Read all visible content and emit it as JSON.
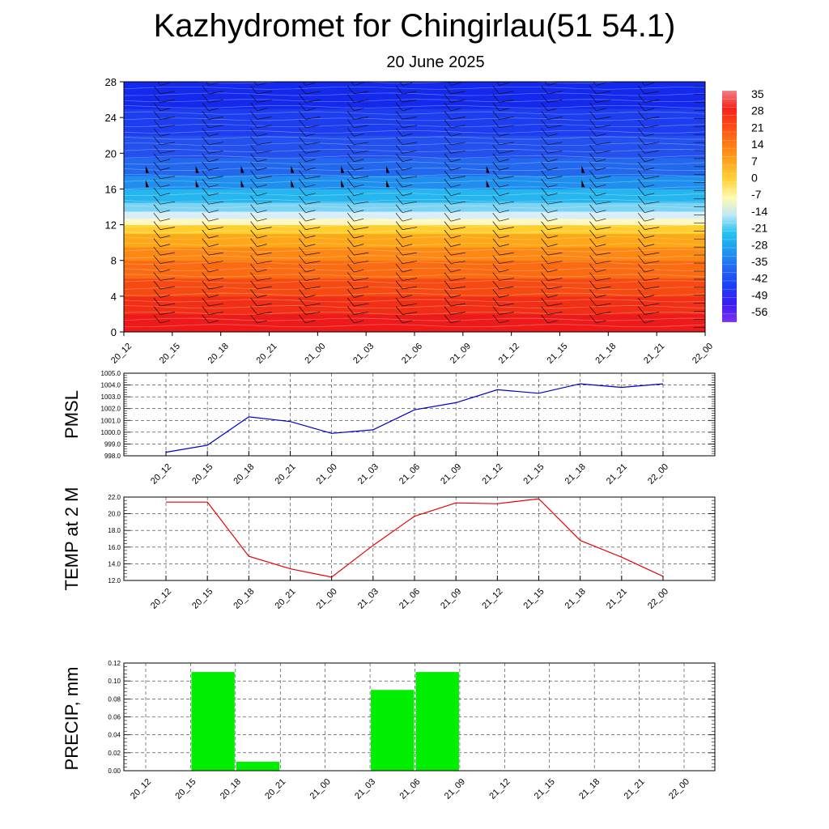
{
  "header": {
    "title": "Kazhydromet for Chingirlau(51 54.1)",
    "subtitle": "20 June 2025"
  },
  "chart_data": [
    {
      "type": "heatmap",
      "name": "temperature-cross-section",
      "title": "",
      "xlabel": "",
      "ylabel": "",
      "x": [
        "20_12",
        "20_15",
        "20_18",
        "20_21",
        "21_00",
        "21_03",
        "21_06",
        "21_09",
        "21_12",
        "21_15",
        "21_18",
        "21_21",
        "22_00"
      ],
      "y_ticks": [
        0,
        4,
        8,
        12,
        16,
        20,
        24,
        28
      ],
      "ylim": [
        0,
        28
      ],
      "colorbar": {
        "labels": [
          "35",
          "28",
          "21",
          "14",
          "7",
          "0",
          "-7",
          "-14",
          "-21",
          "-28",
          "-35",
          "-42",
          "-49",
          "-56"
        ],
        "colors": [
          "#7d33f0",
          "#3b1cf4",
          "#1d3ef5",
          "#2566f3",
          "#1e97f0",
          "#22c4ef",
          "#bfe6f6",
          "#fffbb0",
          "#ffd33b",
          "#ffa71c",
          "#ff7a16",
          "#ff4b14",
          "#f5231b",
          "#f07f89"
        ]
      },
      "bands": [
        {
          "from": 0,
          "to": 2,
          "color": "#ee1a1a"
        },
        {
          "from": 2,
          "to": 4,
          "color": "#f22e14"
        },
        {
          "from": 4,
          "to": 6,
          "color": "#f74a12"
        },
        {
          "from": 6,
          "to": 8,
          "color": "#fb6b12"
        },
        {
          "from": 8,
          "to": 9.5,
          "color": "#fd8914"
        },
        {
          "from": 9.5,
          "to": 11,
          "color": "#fea818"
        },
        {
          "from": 11,
          "to": 12,
          "color": "#ffcf30"
        },
        {
          "from": 12,
          "to": 12.7,
          "color": "#fff8bf"
        },
        {
          "from": 12.7,
          "to": 13.5,
          "color": "#d8eef8"
        },
        {
          "from": 13.5,
          "to": 14.5,
          "color": "#7cd3f3"
        },
        {
          "from": 14.5,
          "to": 16,
          "color": "#25b6ef"
        },
        {
          "from": 16,
          "to": 17.5,
          "color": "#1e8fef"
        },
        {
          "from": 17.5,
          "to": 19.5,
          "color": "#2168ef"
        },
        {
          "from": 19.5,
          "to": 22,
          "color": "#2350ef"
        },
        {
          "from": 22,
          "to": 25,
          "color": "#1d3df0"
        },
        {
          "from": 25,
          "to": 28,
          "color": "#1429ee"
        }
      ]
    },
    {
      "type": "line",
      "name": "pmsl",
      "ylabel": "PMSL",
      "x": [
        "20_12",
        "20_15",
        "20_18",
        "20_21",
        "21_00",
        "21_03",
        "21_06",
        "21_09",
        "21_12",
        "21_15",
        "21_18",
        "21_21",
        "22_00"
      ],
      "y_ticks": [
        "998.0",
        "999.0",
        "1000.0",
        "1001.0",
        "1002.0",
        "1003.0",
        "1004.0",
        "1005.0"
      ],
      "ylim": [
        998,
        1005
      ],
      "color": "#0000cc",
      "values": [
        998.3,
        998.9,
        1001.3,
        1000.9,
        999.9,
        1000.2,
        1001.9,
        1002.5,
        1003.6,
        1003.3,
        1004.1,
        1003.8,
        1004.1
      ]
    },
    {
      "type": "line",
      "name": "temp-2m",
      "ylabel": "TEMP at 2 M",
      "x": [
        "20_12",
        "20_15",
        "20_18",
        "20_21",
        "21_00",
        "21_03",
        "21_06",
        "21_09",
        "21_12",
        "21_15",
        "21_18",
        "21_21",
        "22_00"
      ],
      "y_ticks": [
        "12.0",
        "14.0",
        "16.0",
        "18.0",
        "20.0",
        "22.0"
      ],
      "ylim": [
        12,
        22
      ],
      "color": "#ee0000",
      "values": [
        21.4,
        21.4,
        14.9,
        13.4,
        12.4,
        16.2,
        19.7,
        21.3,
        21.2,
        21.8,
        16.8,
        14.8,
        12.5
      ]
    },
    {
      "type": "bar",
      "name": "precip",
      "ylabel": "PRECIP, mm",
      "categories": [
        "20_12",
        "20_15",
        "20_18",
        "20_21",
        "21_00",
        "21_03",
        "21_06",
        "21_09",
        "21_12",
        "21_15",
        "21_18",
        "21_21",
        "22_00"
      ],
      "y_ticks": [
        "0.00",
        "0.02",
        "0.04",
        "0.06",
        "0.08",
        "0.10",
        "0.12"
      ],
      "ylim": [
        0,
        0.12
      ],
      "color": "#00ee00",
      "values": [
        0,
        0.11,
        0.01,
        0,
        0,
        0.09,
        0.11,
        0,
        0,
        0,
        0,
        0,
        0
      ]
    }
  ]
}
